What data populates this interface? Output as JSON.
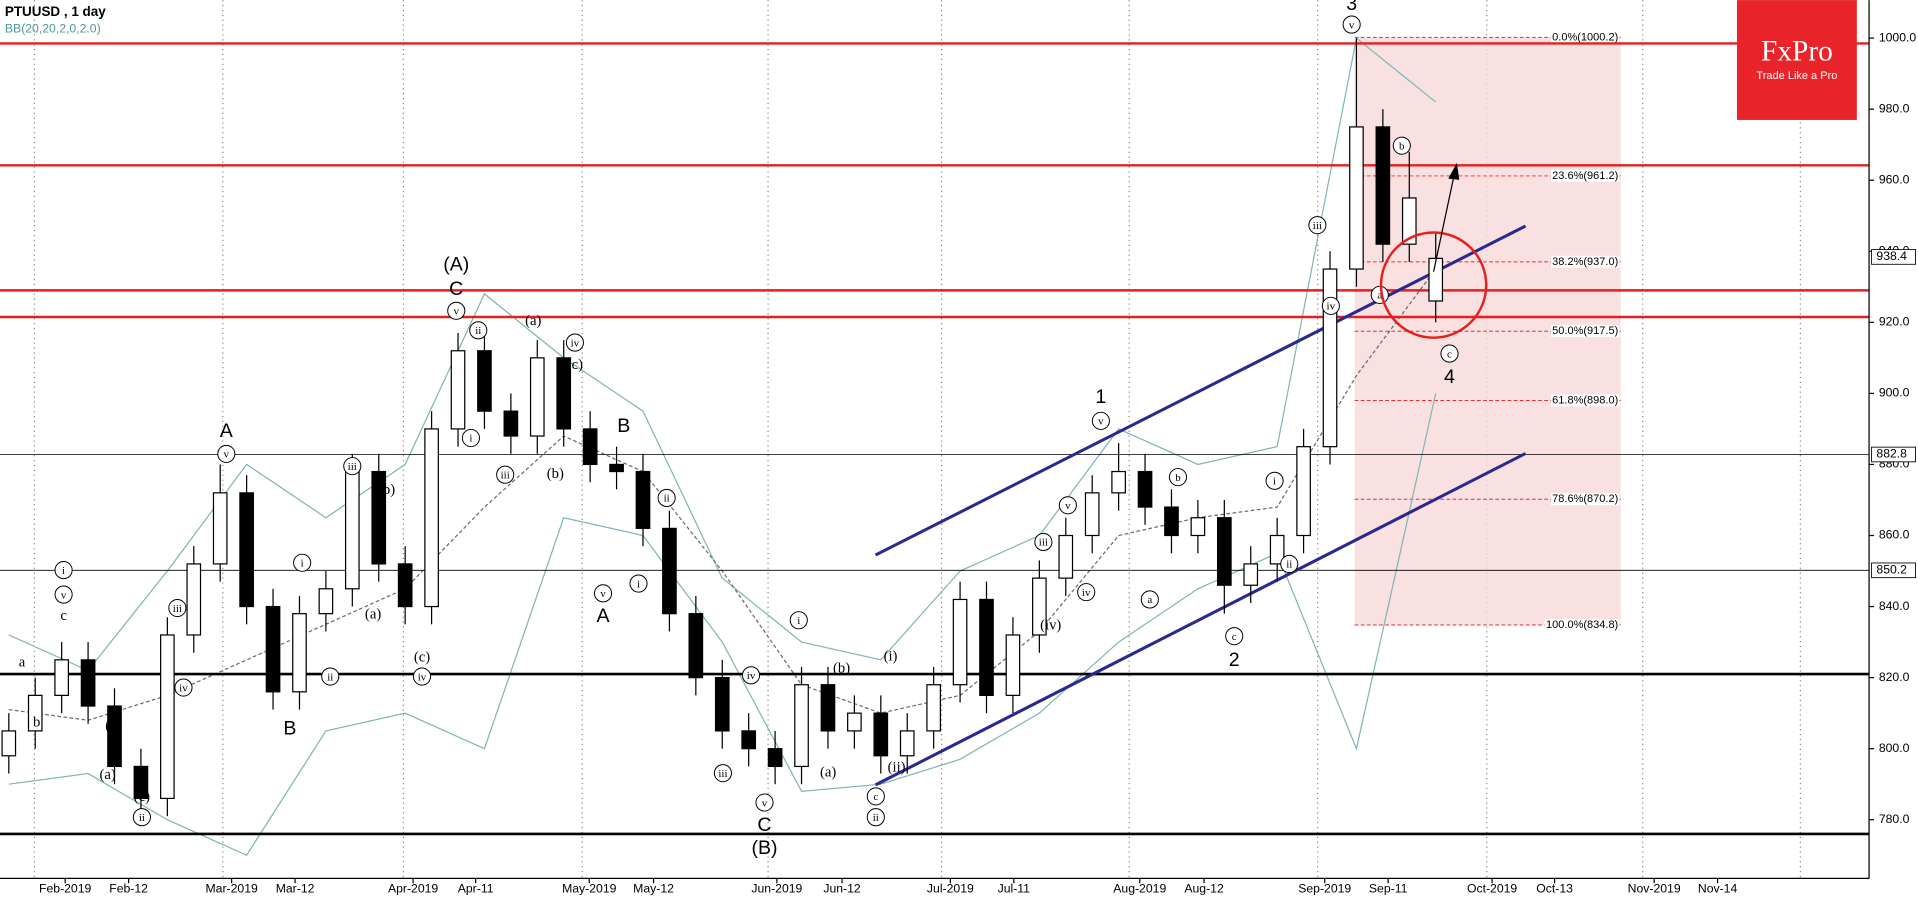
{
  "chart_data": {
    "type": "candlestick",
    "title": "PTUUSD , 1 day",
    "indicator": "BB(20,20,2,0,2.0)",
    "brand": "FxPro",
    "tagline": "Trade Like a Pro",
    "xlim": [
      0,
      212.2
    ],
    "ylim": [
      763.5,
      1010.7
    ],
    "yticks": [
      {
        "value": 780,
        "label": "780.0"
      },
      {
        "value": 800,
        "label": "800.0"
      },
      {
        "value": 820,
        "label": "820.0"
      },
      {
        "value": 840,
        "label": "840.0"
      },
      {
        "value": 860,
        "label": "860.0"
      },
      {
        "value": 880,
        "label": "880.0"
      },
      {
        "value": 900,
        "label": "900.0"
      },
      {
        "value": 920,
        "label": "920.0"
      },
      {
        "value": 940,
        "label": "940.0"
      },
      {
        "value": 960,
        "label": "960.0"
      },
      {
        "value": 980,
        "label": "980.0"
      },
      {
        "value": 1000,
        "label": "1000.0"
      }
    ],
    "xticks": [
      {
        "value": 7.4,
        "label": "Feb-2019"
      },
      {
        "value": 14.6,
        "label": "Feb-12"
      },
      {
        "value": 26.3,
        "label": "Mar-2019"
      },
      {
        "value": 33.5,
        "label": "Mar-12"
      },
      {
        "value": 46.9,
        "label": "Apr-2019"
      },
      {
        "value": 54.0,
        "label": "Apr-11"
      },
      {
        "value": 66.9,
        "label": "May-2019"
      },
      {
        "value": 74.2,
        "label": "May-12"
      },
      {
        "value": 88.2,
        "label": "Jun-2019"
      },
      {
        "value": 95.6,
        "label": "Jun-12"
      },
      {
        "value": 107.9,
        "label": "Jul-2019"
      },
      {
        "value": 115.1,
        "label": "Jul-11"
      },
      {
        "value": 129.4,
        "label": "Aug-2019"
      },
      {
        "value": 136.7,
        "label": "Aug-12"
      },
      {
        "value": 150.4,
        "label": "Sep-2019"
      },
      {
        "value": 157.6,
        "label": "Sep-11"
      },
      {
        "value": 169.4,
        "label": "Oct-2019"
      },
      {
        "value": 176.5,
        "label": "Oct-13"
      },
      {
        "value": 187.8,
        "label": "Nov-2019"
      },
      {
        "value": 195.0,
        "label": "Nov-14"
      }
    ],
    "xgrid": [
      3.9,
      25.3,
      45.8,
      66.1,
      87.2,
      106.9,
      128.2,
      149.6,
      168.8,
      186.5,
      204.4
    ],
    "candles": {
      "x": [
        1,
        4,
        7,
        10,
        13,
        16,
        19,
        22,
        25,
        28,
        31,
        34,
        37,
        40,
        43,
        46,
        49,
        52,
        55,
        58,
        61,
        64,
        67,
        70,
        73,
        76,
        79,
        82,
        85,
        88,
        91,
        94,
        97,
        100,
        103,
        106,
        109,
        112,
        115,
        118,
        121,
        124,
        127,
        130,
        133,
        136,
        139,
        142,
        145,
        148,
        151,
        154,
        157,
        160,
        163
      ],
      "open": [
        798,
        805,
        815,
        825,
        812,
        795,
        786,
        832,
        852,
        872,
        840,
        816,
        838,
        845,
        878,
        852,
        840,
        890,
        912,
        895,
        888,
        910,
        890,
        880,
        878,
        862,
        838,
        820,
        805,
        800,
        795,
        818,
        805,
        810,
        798,
        805,
        818,
        842,
        815,
        832,
        848,
        860,
        872,
        878,
        868,
        860,
        865,
        846,
        852,
        860,
        885,
        935,
        975,
        942,
        926
      ],
      "high": [
        810,
        820,
        830,
        830,
        817,
        800,
        837,
        857,
        880,
        877,
        845,
        843,
        850,
        883,
        883,
        857,
        895,
        917,
        917,
        900,
        915,
        915,
        895,
        885,
        883,
        867,
        843,
        825,
        810,
        805,
        823,
        823,
        815,
        815,
        810,
        823,
        847,
        847,
        837,
        853,
        865,
        877,
        886,
        883,
        873,
        870,
        870,
        857,
        865,
        890,
        940,
        1000,
        980,
        968,
        945
      ],
      "low": [
        793,
        800,
        810,
        807,
        790,
        781,
        781,
        827,
        847,
        835,
        811,
        811,
        833,
        840,
        847,
        835,
        835,
        885,
        890,
        883,
        883,
        885,
        875,
        873,
        857,
        833,
        815,
        800,
        795,
        790,
        790,
        800,
        800,
        793,
        793,
        800,
        813,
        810,
        810,
        827,
        843,
        855,
        867,
        863,
        855,
        855,
        838,
        841,
        847,
        855,
        880,
        930,
        937,
        937,
        920
      ],
      "close": [
        805,
        815,
        825,
        812,
        795,
        786,
        832,
        852,
        872,
        840,
        816,
        838,
        845,
        878,
        852,
        840,
        890,
        912,
        895,
        888,
        910,
        890,
        880,
        878,
        862,
        838,
        820,
        805,
        800,
        795,
        818,
        805,
        810,
        798,
        805,
        818,
        842,
        815,
        832,
        848,
        860,
        872,
        878,
        868,
        860,
        865,
        846,
        852,
        860,
        885,
        935,
        975,
        942,
        955,
        938
      ]
    },
    "bb": {
      "x": [
        1,
        10,
        19,
        28,
        37,
        46,
        55,
        64,
        73,
        82,
        91,
        100,
        109,
        118,
        127,
        136,
        145,
        154,
        163
      ],
      "upper": [
        832,
        822,
        850,
        880,
        865,
        880,
        928,
        910,
        895,
        848,
        830,
        825,
        850,
        860,
        890,
        880,
        885,
        1000,
        982
      ],
      "middle": [
        811,
        808,
        815,
        825,
        835,
        845,
        868,
        888,
        878,
        850,
        818,
        810,
        815,
        833,
        860,
        865,
        868,
        905,
        935
      ],
      "lower": [
        790,
        793,
        780,
        770,
        805,
        810,
        800,
        865,
        860,
        830,
        788,
        790,
        797,
        810,
        830,
        845,
        855,
        800,
        900
      ]
    },
    "red_levels": [
      998.5,
      964.2,
      929,
      921.5
    ],
    "thin_levels": [
      882.8,
      850.2
    ],
    "thick_levels": [
      821,
      776
    ],
    "price_tags": [
      938.4,
      882.8,
      850.2
    ],
    "channel": {
      "x": [
        99.4,
        173.2
      ],
      "upper": [
        854.5,
        947.1
      ],
      "lower": [
        789.8,
        883.1
      ]
    },
    "fib": {
      "x": [
        153.8,
        184.0
      ],
      "levels": [
        1000.2,
        961.2,
        937.0,
        917.5,
        898.0,
        870.2,
        834.8
      ],
      "labels": [
        "0.0%(1000.2)",
        "23.6%(961.2)",
        "38.2%(937.0)",
        "50.0%(917.5)",
        "61.8%(898.0)",
        "78.6%(870.2)",
        "100.0%(834.8)"
      ]
    },
    "annotations": [
      {
        "text": "a",
        "circled": false
      },
      {
        "text": "b",
        "circled": false
      },
      {
        "text": "c",
        "circled": false
      },
      {
        "text": "v",
        "circled": true
      },
      {
        "text": "i",
        "circled": true
      },
      {
        "text": "(b)",
        "circled": false
      },
      {
        "text": "(a)",
        "circled": false
      },
      {
        "text": "(c)",
        "circled": false
      },
      {
        "text": "ii",
        "circled": true
      },
      {
        "text": "iii",
        "circled": true
      },
      {
        "text": "iv",
        "circled": true
      },
      {
        "text": "A",
        "circled": false
      },
      {
        "text": "v",
        "circled": true
      },
      {
        "text": "B",
        "circled": false
      },
      {
        "text": "i",
        "circled": true
      },
      {
        "text": "ii",
        "circled": true
      },
      {
        "text": "iii",
        "circled": true
      },
      {
        "text": "(b)",
        "circled": false
      },
      {
        "text": "(a)",
        "circled": false
      },
      {
        "text": "(c)",
        "circled": false
      },
      {
        "text": "iv",
        "circled": true
      },
      {
        "text": "(A)",
        "circled": false
      },
      {
        "text": "C",
        "circled": false
      },
      {
        "text": "v",
        "circled": true
      },
      {
        "text": "ii",
        "circled": true
      },
      {
        "text": "i",
        "circled": true
      },
      {
        "text": "iii",
        "circled": true
      },
      {
        "text": "(a)",
        "circled": false
      },
      {
        "text": "iv",
        "circled": true
      },
      {
        "text": "(c)",
        "circled": false
      },
      {
        "text": "(b)",
        "circled": false
      },
      {
        "text": "B",
        "circled": false
      },
      {
        "text": "ii",
        "circled": true
      },
      {
        "text": "i",
        "circled": true
      },
      {
        "text": "v",
        "circled": true
      },
      {
        "text": "A",
        "circled": false
      },
      {
        "text": "iv",
        "circled": true
      },
      {
        "text": "iii",
        "circled": true
      },
      {
        "text": "v",
        "circled": true
      },
      {
        "text": "C",
        "circled": false
      },
      {
        "text": "(B)",
        "circled": false
      },
      {
        "text": "i",
        "circled": true
      },
      {
        "text": "(b)",
        "circled": false
      },
      {
        "text": "(a)",
        "circled": false
      },
      {
        "text": "(i)",
        "circled": false
      },
      {
        "text": "(ii)",
        "circled": false
      },
      {
        "text": "c",
        "circled": true
      },
      {
        "text": "ii",
        "circled": true
      },
      {
        "text": "iii",
        "circled": true
      },
      {
        "text": "(iv)",
        "circled": false
      },
      {
        "text": "iv",
        "circled": true
      },
      {
        "text": "v",
        "circled": true
      },
      {
        "text": "1",
        "circled": false
      },
      {
        "text": "v",
        "circled": true
      },
      {
        "text": "a",
        "circled": true
      },
      {
        "text": "b",
        "circled": true
      },
      {
        "text": "c",
        "circled": true
      },
      {
        "text": "2",
        "circled": false
      },
      {
        "text": "i",
        "circled": true
      },
      {
        "text": "ii",
        "circled": true
      },
      {
        "text": "iii",
        "circled": true
      },
      {
        "text": "iv",
        "circled": true
      },
      {
        "text": "3",
        "circled": false
      },
      {
        "text": "v",
        "circled": true
      },
      {
        "text": "b",
        "circled": true
      },
      {
        "text": "a",
        "circled": true
      },
      {
        "text": "c",
        "circled": true
      },
      {
        "text": "4",
        "circled": false
      }
    ]
  }
}
